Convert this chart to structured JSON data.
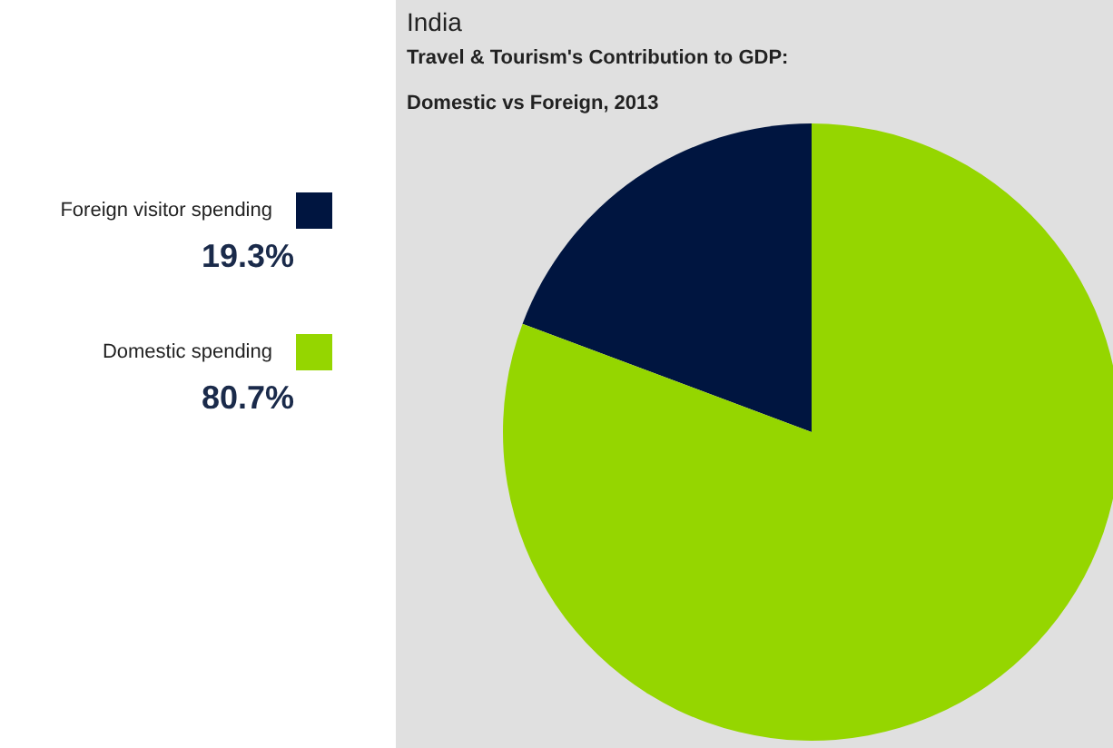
{
  "chart_data": {
    "type": "pie",
    "title": "India",
    "subtitle": "Travel & Tourism's Contribution to GDP:\nDomestic vs Foreign, 2013",
    "categories": [
      "Foreign visitor spending",
      "Domestic spending"
    ],
    "values": [
      19.3,
      80.7
    ],
    "colors": [
      "#001540",
      "#95d600"
    ],
    "value_labels": [
      "19.3%",
      "80.7%"
    ],
    "legend": "left"
  }
}
